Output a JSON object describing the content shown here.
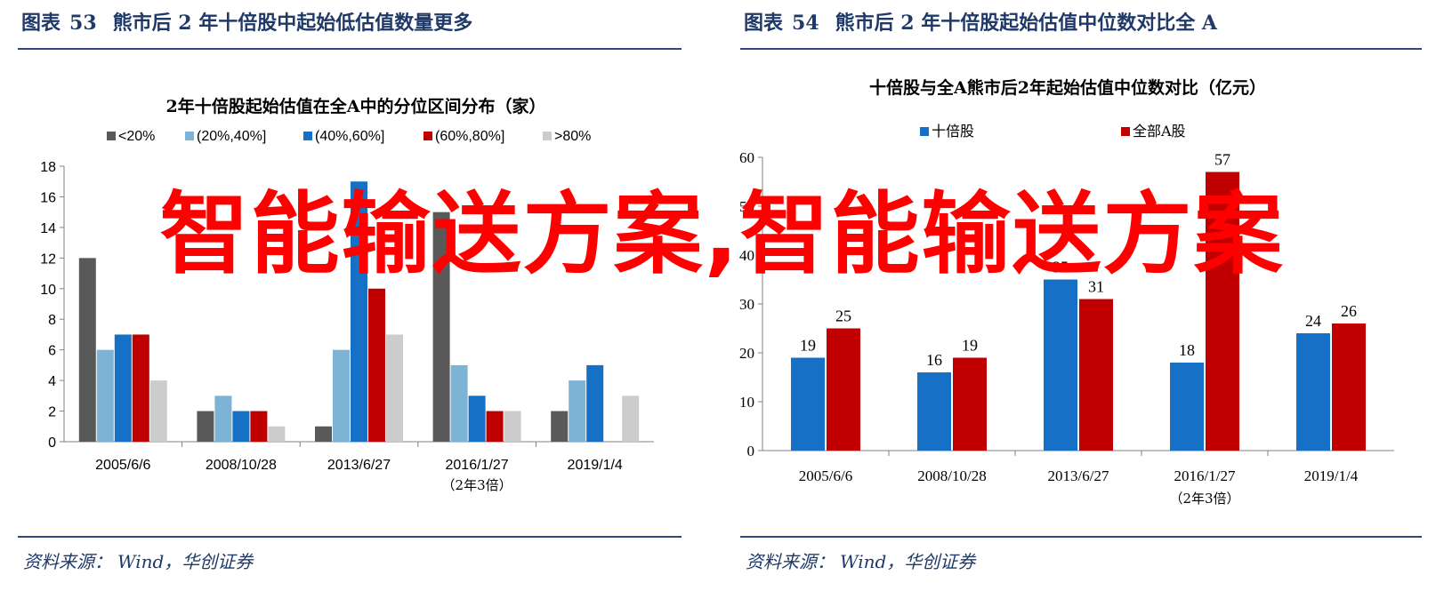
{
  "overlay_text": "智能输送方案,智能输送方案",
  "colors": {
    "heading": "#1f3a68",
    "overlay": "#ff0000"
  },
  "figures": [
    {
      "label": "图表",
      "number": "53",
      "title": "熊市后 2 年十倍股中起始低估值数量更多",
      "source_prefix": "资料来源：",
      "source_text": "Wind，华创证券"
    },
    {
      "label": "图表",
      "number": "54",
      "title": "熊市后 2 年十倍股起始估值中位数对比全 A",
      "source_prefix": "资料来源：",
      "source_text": "Wind，华创证券"
    }
  ],
  "chart_data": [
    {
      "type": "bar",
      "title": "2年十倍股起始估值在全A中的分位区间分布（家）",
      "categories": [
        "2005/6/6",
        "2008/10/28",
        "2013/6/27",
        "2016/1/27",
        "2019/1/4"
      ],
      "category_sublabels": [
        "",
        "",
        "",
        "（2年3倍）",
        ""
      ],
      "series": [
        {
          "name": "<20%",
          "color": "#595959",
          "values": [
            12,
            2,
            1,
            15,
            2
          ]
        },
        {
          "name": "(20%,40%]",
          "color": "#7db4d6",
          "values": [
            6,
            3,
            6,
            5,
            4
          ]
        },
        {
          "name": "(40%,60%]",
          "color": "#1570c6",
          "values": [
            7,
            2,
            17,
            3,
            5
          ]
        },
        {
          "name": "(60%,80%]",
          "color": "#c00000",
          "values": [
            7,
            2,
            10,
            2,
            0
          ]
        },
        {
          "name": ">80%",
          "color": "#cccccc",
          "values": [
            4,
            1,
            7,
            2,
            3
          ]
        }
      ],
      "ylim": [
        0,
        18
      ],
      "yticks": [
        0,
        2,
        4,
        6,
        8,
        10,
        12,
        14,
        16,
        18
      ],
      "legend": "top",
      "grid": false,
      "data_labels": false
    },
    {
      "type": "bar",
      "title": "十倍股与全A熊市后2年起始估值中位数对比（亿元）",
      "categories": [
        "2005/6/6",
        "2008/10/28",
        "2013/6/27",
        "2016/1/27",
        "2019/1/4"
      ],
      "category_sublabels": [
        "",
        "",
        "",
        "（2年3倍）",
        ""
      ],
      "series": [
        {
          "name": "十倍股",
          "color": "#1570c6",
          "values": [
            19,
            16,
            35,
            18,
            24
          ]
        },
        {
          "name": "全部A股",
          "color": "#c00000",
          "values": [
            25,
            19,
            31,
            57,
            26
          ]
        }
      ],
      "ylim": [
        0,
        60
      ],
      "yticks": [
        0,
        10,
        20,
        30,
        40,
        50,
        60
      ],
      "legend": "top",
      "grid": false,
      "data_labels": true
    }
  ]
}
